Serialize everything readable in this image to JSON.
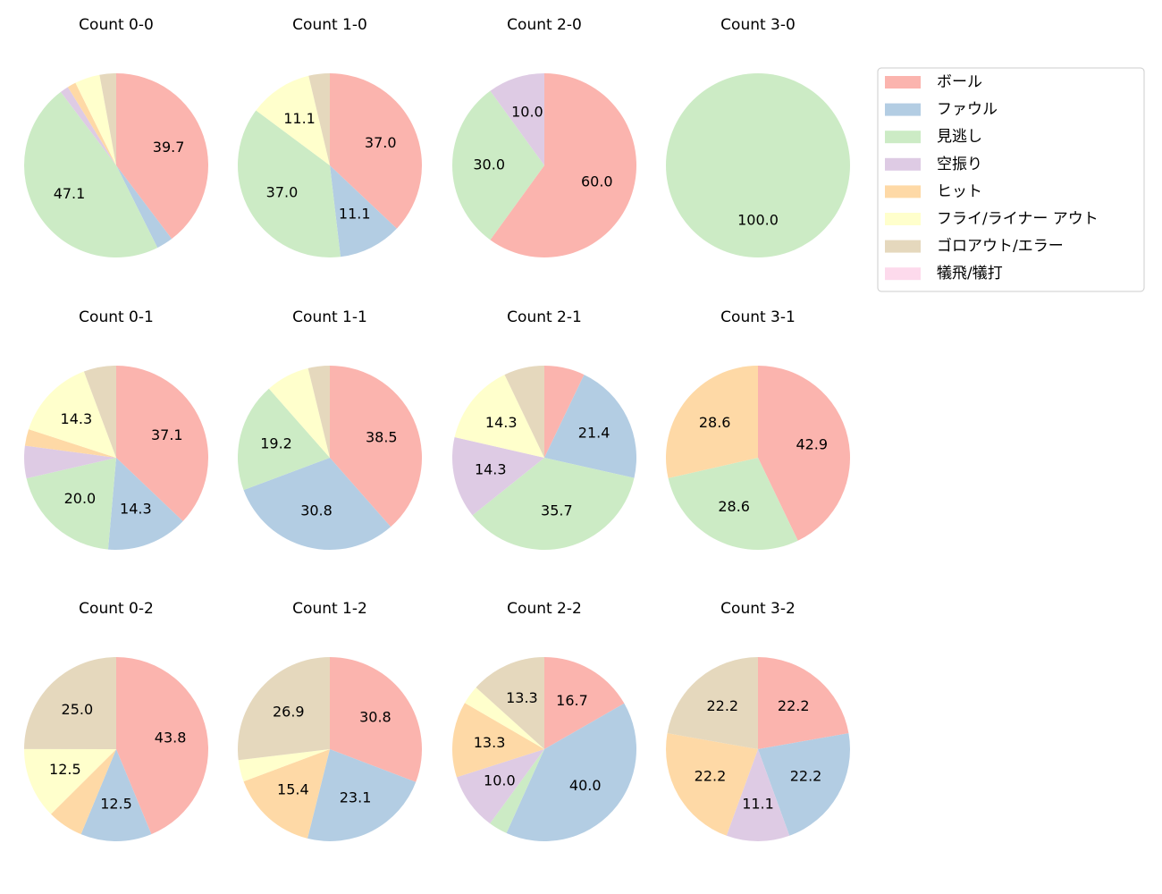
{
  "chart_data": [
    {
      "type": "pie",
      "title": "Count 0-0",
      "categories": [
        "ボール",
        "ファウル",
        "見逃し",
        "空振り",
        "ヒット",
        "フライ/ライナー アウト",
        "ゴロアウト/エラー",
        "犠飛/犠打"
      ],
      "colors": [
        "#fbb4ae",
        "#b3cde3",
        "#ccebc5",
        "#decbe4",
        "#fed9a6",
        "#ffffcc",
        "#e5d8bd",
        "#fddaec"
      ],
      "values": [
        39.7,
        2.9,
        47.1,
        1.5,
        1.5,
        4.4,
        2.9,
        0
      ],
      "value_labels": [
        "39.7",
        null,
        "47.1",
        null,
        null,
        null,
        null,
        null
      ]
    },
    {
      "type": "pie",
      "title": "Count 1-0",
      "categories": [
        "ボール",
        "ファウル",
        "見逃し",
        "空振り",
        "ヒット",
        "フライ/ライナー アウト",
        "ゴロアウト/エラー",
        "犠飛/犠打"
      ],
      "colors": [
        "#fbb4ae",
        "#b3cde3",
        "#ccebc5",
        "#decbe4",
        "#fed9a6",
        "#ffffcc",
        "#e5d8bd",
        "#fddaec"
      ],
      "values": [
        37.0,
        11.1,
        37.0,
        0,
        0,
        11.1,
        3.7,
        0
      ],
      "value_labels": [
        "37.0",
        "11.1",
        "37.0",
        null,
        null,
        "11.1",
        null,
        null
      ]
    },
    {
      "type": "pie",
      "title": "Count 2-0",
      "categories": [
        "ボール",
        "ファウル",
        "見逃し",
        "空振り",
        "ヒット",
        "フライ/ライナー アウト",
        "ゴロアウト/エラー",
        "犠飛/犠打"
      ],
      "colors": [
        "#fbb4ae",
        "#b3cde3",
        "#ccebc5",
        "#decbe4",
        "#fed9a6",
        "#ffffcc",
        "#e5d8bd",
        "#fddaec"
      ],
      "values": [
        60.0,
        0,
        30.0,
        10.0,
        0,
        0,
        0,
        0
      ],
      "value_labels": [
        "60.0",
        null,
        "30.0",
        "10.0",
        null,
        null,
        null,
        null
      ]
    },
    {
      "type": "pie",
      "title": "Count 3-0",
      "categories": [
        "ボール",
        "ファウル",
        "見逃し",
        "空振り",
        "ヒット",
        "フライ/ライナー アウト",
        "ゴロアウト/エラー",
        "犠飛/犠打"
      ],
      "colors": [
        "#fbb4ae",
        "#b3cde3",
        "#ccebc5",
        "#decbe4",
        "#fed9a6",
        "#ffffcc",
        "#e5d8bd",
        "#fddaec"
      ],
      "values": [
        0,
        0,
        100,
        0,
        0,
        0,
        0,
        0
      ],
      "value_labels": [
        null,
        null,
        "100.0",
        null,
        null,
        null,
        null,
        null
      ]
    },
    {
      "type": "pie",
      "title": "Count 0-1",
      "categories": [
        "ボール",
        "ファウル",
        "見逃し",
        "空振り",
        "ヒット",
        "フライ/ライナー アウト",
        "ゴロアウト/エラー",
        "犠飛/犠打"
      ],
      "colors": [
        "#fbb4ae",
        "#b3cde3",
        "#ccebc5",
        "#decbe4",
        "#fed9a6",
        "#ffffcc",
        "#e5d8bd",
        "#fddaec"
      ],
      "values": [
        37.1,
        14.3,
        20.0,
        5.7,
        2.9,
        14.3,
        5.7,
        0
      ],
      "value_labels": [
        "37.1",
        "14.3",
        "20.0",
        null,
        null,
        "14.3",
        null,
        null
      ]
    },
    {
      "type": "pie",
      "title": "Count 1-1",
      "categories": [
        "ボール",
        "ファウル",
        "見逃し",
        "空振り",
        "ヒット",
        "フライ/ライナー アウト",
        "ゴロアウト/エラー",
        "犠飛/犠打"
      ],
      "colors": [
        "#fbb4ae",
        "#b3cde3",
        "#ccebc5",
        "#decbe4",
        "#fed9a6",
        "#ffffcc",
        "#e5d8bd",
        "#fddaec"
      ],
      "values": [
        38.5,
        30.8,
        19.2,
        0,
        0,
        7.7,
        3.8,
        0
      ],
      "value_labels": [
        "38.5",
        "30.8",
        "19.2",
        null,
        null,
        null,
        null,
        null
      ]
    },
    {
      "type": "pie",
      "title": "Count 2-1",
      "categories": [
        "ボール",
        "ファウル",
        "見逃し",
        "空振り",
        "ヒット",
        "フライ/ライナー アウト",
        "ゴロアウト/エラー",
        "犠飛/犠打"
      ],
      "colors": [
        "#fbb4ae",
        "#b3cde3",
        "#ccebc5",
        "#decbe4",
        "#fed9a6",
        "#ffffcc",
        "#e5d8bd",
        "#fddaec"
      ],
      "values": [
        7.1,
        21.4,
        35.7,
        14.3,
        0,
        14.3,
        7.1,
        0
      ],
      "value_labels": [
        null,
        "21.4",
        "35.7",
        "14.3",
        null,
        "14.3",
        null,
        null
      ]
    },
    {
      "type": "pie",
      "title": "Count 3-1",
      "categories": [
        "ボール",
        "ファウル",
        "見逃し",
        "空振り",
        "ヒット",
        "フライ/ライナー アウト",
        "ゴロアウト/エラー",
        "犠飛/犠打"
      ],
      "colors": [
        "#fbb4ae",
        "#b3cde3",
        "#ccebc5",
        "#decbe4",
        "#fed9a6",
        "#ffffcc",
        "#e5d8bd",
        "#fddaec"
      ],
      "values": [
        42.9,
        0,
        28.6,
        0,
        28.6,
        0,
        0,
        0
      ],
      "value_labels": [
        "42.9",
        null,
        "28.6",
        null,
        "28.6",
        null,
        null,
        null
      ]
    },
    {
      "type": "pie",
      "title": "Count 0-2",
      "categories": [
        "ボール",
        "ファウル",
        "見逃し",
        "空振り",
        "ヒット",
        "フライ/ライナー アウト",
        "ゴロアウト/エラー",
        "犠飛/犠打"
      ],
      "colors": [
        "#fbb4ae",
        "#b3cde3",
        "#ccebc5",
        "#decbe4",
        "#fed9a6",
        "#ffffcc",
        "#e5d8bd",
        "#fddaec"
      ],
      "values": [
        43.8,
        12.5,
        0,
        0,
        6.3,
        12.5,
        25.0,
        0
      ],
      "value_labels": [
        "43.8",
        "12.5",
        null,
        null,
        null,
        "12.5",
        "25.0",
        null
      ]
    },
    {
      "type": "pie",
      "title": "Count 1-2",
      "categories": [
        "ボール",
        "ファウル",
        "見逃し",
        "空振り",
        "ヒット",
        "フライ/ライナー アウト",
        "ゴロアウト/エラー",
        "犠飛/犠打"
      ],
      "colors": [
        "#fbb4ae",
        "#b3cde3",
        "#ccebc5",
        "#decbe4",
        "#fed9a6",
        "#ffffcc",
        "#e5d8bd",
        "#fddaec"
      ],
      "values": [
        30.8,
        23.1,
        0,
        0,
        15.4,
        3.8,
        26.9,
        0
      ],
      "value_labels": [
        "30.8",
        "23.1",
        null,
        null,
        "15.4",
        null,
        "26.9",
        null
      ]
    },
    {
      "type": "pie",
      "title": "Count 2-2",
      "categories": [
        "ボール",
        "ファウル",
        "見逃し",
        "空振り",
        "ヒット",
        "フライ/ライナー アウト",
        "ゴロアウト/エラー",
        "犠飛/犠打"
      ],
      "colors": [
        "#fbb4ae",
        "#b3cde3",
        "#ccebc5",
        "#decbe4",
        "#fed9a6",
        "#ffffcc",
        "#e5d8bd",
        "#fddaec"
      ],
      "values": [
        16.7,
        40.0,
        3.3,
        10.0,
        13.3,
        3.3,
        13.3,
        0
      ],
      "value_labels": [
        "16.7",
        "40.0",
        null,
        "10.0",
        "13.3",
        null,
        "13.3",
        null
      ]
    },
    {
      "type": "pie",
      "title": "Count 3-2",
      "categories": [
        "ボール",
        "ファウル",
        "見逃し",
        "空振り",
        "ヒット",
        "フライ/ライナー アウト",
        "ゴロアウト/エラー",
        "犠飛/犠打"
      ],
      "colors": [
        "#fbb4ae",
        "#b3cde3",
        "#ccebc5",
        "#decbe4",
        "#fed9a6",
        "#ffffcc",
        "#e5d8bd",
        "#fddaec"
      ],
      "values": [
        22.2,
        22.2,
        0,
        11.1,
        22.2,
        0,
        22.2,
        0
      ],
      "value_labels": [
        "22.2",
        "22.2",
        null,
        "11.1",
        "22.2",
        null,
        "22.2",
        null
      ]
    }
  ]
}
